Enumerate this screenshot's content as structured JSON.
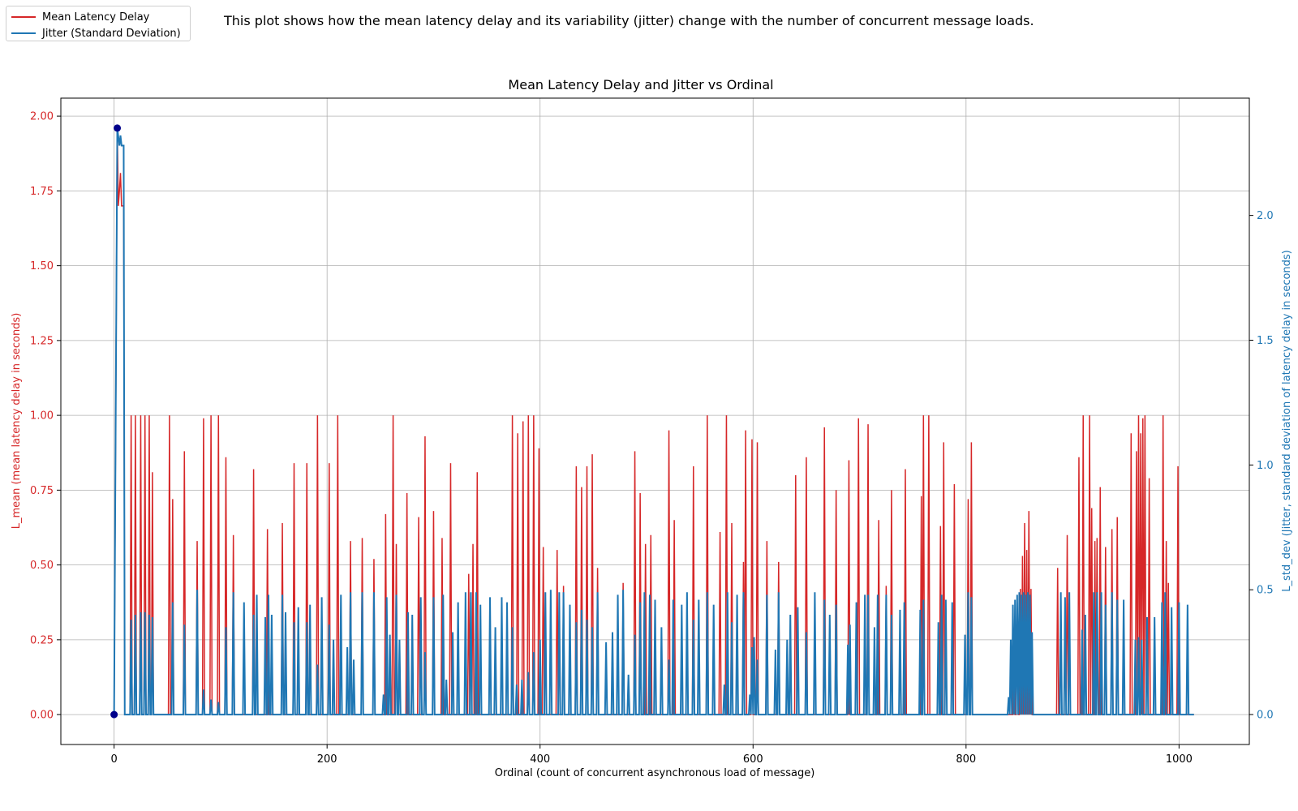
{
  "description": "This plot shows how the mean latency delay and its variability (jitter) change with the number of concurrent message loads.",
  "colors": {
    "mean": "#d62728",
    "jitter": "#1f77b4",
    "marker": "#00008b",
    "grid": "#b0b0b0"
  },
  "chart_data": {
    "type": "line",
    "title": "Mean Latency Delay and Jitter vs Ordinal",
    "xlabel": "Ordinal (count of concurrent asynchronous load of message)",
    "ylabel_left": "L_mean (mean latency delay in seconds)",
    "ylabel_right": "L_std_dev (Jitter, standard deviation of latency delay in seconds)",
    "xlim": [
      -50,
      1066
    ],
    "ylim_left": [
      -0.1,
      2.06
    ],
    "ylim_right": [
      -0.12,
      2.47
    ],
    "x_ticks": [
      "0",
      "200",
      "400",
      "600",
      "800",
      "1000"
    ],
    "y_left_ticks": [
      "0.00",
      "0.25",
      "0.50",
      "0.75",
      "1.00",
      "1.25",
      "1.50",
      "1.75",
      "2.00"
    ],
    "y_right_ticks": [
      "0.0",
      "0.5",
      "1.0",
      "1.5",
      "2.0"
    ],
    "grid": true,
    "legend": [
      "Mean Latency Delay",
      "Jitter (Standard Deviation)"
    ],
    "legend_placement": "top-left",
    "series": [
      {
        "name": "Mean Latency Delay",
        "axis": "left",
        "start": [
          [
            0,
            0
          ],
          [
            3,
            1.96
          ],
          [
            4,
            1.7
          ],
          [
            5,
            1.75
          ],
          [
            6,
            1.81
          ],
          [
            7,
            1.7
          ],
          [
            9,
            1.7
          ],
          [
            10,
            0
          ]
        ],
        "end": 1014,
        "spikes": [
          [
            16,
            1.0
          ],
          [
            20,
            1.0
          ],
          [
            25,
            1.0
          ],
          [
            29,
            1.0
          ],
          [
            33,
            1.0
          ],
          [
            36,
            0.81
          ],
          [
            52,
            1.0
          ],
          [
            55,
            0.72
          ],
          [
            66,
            0.88
          ],
          [
            78,
            0.58
          ],
          [
            84,
            0.99
          ],
          [
            91,
            1.0
          ],
          [
            98,
            1.0
          ],
          [
            105,
            0.86
          ],
          [
            112,
            0.6
          ],
          [
            131,
            0.82
          ],
          [
            144,
            0.62
          ],
          [
            158,
            0.64
          ],
          [
            169,
            0.84
          ],
          [
            181,
            0.84
          ],
          [
            191,
            1.0
          ],
          [
            202,
            0.84
          ],
          [
            210,
            1.0
          ],
          [
            222,
            0.58
          ],
          [
            233,
            0.59
          ],
          [
            244,
            0.52
          ],
          [
            255,
            0.67
          ],
          [
            262,
            1.0
          ],
          [
            265,
            0.57
          ],
          [
            275,
            0.74
          ],
          [
            286,
            0.66
          ],
          [
            292,
            0.93
          ],
          [
            300,
            0.68
          ],
          [
            308,
            0.59
          ],
          [
            316,
            0.84
          ],
          [
            333,
            0.47
          ],
          [
            337,
            0.57
          ],
          [
            341,
            0.81
          ],
          [
            374,
            1.0
          ],
          [
            379,
            0.94
          ],
          [
            384,
            0.98
          ],
          [
            389,
            1.0
          ],
          [
            394,
            1.0
          ],
          [
            399,
            0.89
          ],
          [
            403,
            0.56
          ],
          [
            416,
            0.55
          ],
          [
            422,
            0.43
          ],
          [
            434,
            0.83
          ],
          [
            439,
            0.76
          ],
          [
            444,
            0.83
          ],
          [
            449,
            0.87
          ],
          [
            454,
            0.49
          ],
          [
            478,
            0.44
          ],
          [
            489,
            0.88
          ],
          [
            494,
            0.74
          ],
          [
            499,
            0.57
          ],
          [
            504,
            0.6
          ],
          [
            521,
            0.95
          ],
          [
            526,
            0.65
          ],
          [
            544,
            0.83
          ],
          [
            557,
            1.0
          ],
          [
            569,
            0.61
          ],
          [
            575,
            1.0
          ],
          [
            580,
            0.64
          ],
          [
            591,
            0.51
          ],
          [
            593,
            0.95
          ],
          [
            599,
            0.92
          ],
          [
            604,
            0.91
          ],
          [
            613,
            0.58
          ],
          [
            624,
            0.51
          ],
          [
            640,
            0.8
          ],
          [
            650,
            0.86
          ],
          [
            667,
            0.96
          ],
          [
            678,
            0.75
          ],
          [
            690,
            0.85
          ],
          [
            699,
            0.99
          ],
          [
            708,
            0.97
          ],
          [
            718,
            0.65
          ],
          [
            725,
            0.43
          ],
          [
            730,
            0.75
          ],
          [
            743,
            0.82
          ],
          [
            758,
            0.73
          ],
          [
            760,
            1.0
          ],
          [
            765,
            1.0
          ],
          [
            776,
            0.63
          ],
          [
            779,
            0.91
          ],
          [
            789,
            0.77
          ],
          [
            802,
            0.72
          ],
          [
            805,
            0.91
          ],
          [
            845,
            0.27
          ],
          [
            848,
            0.36
          ],
          [
            851,
            0.42
          ],
          [
            853,
            0.53
          ],
          [
            855,
            0.64
          ],
          [
            857,
            0.55
          ],
          [
            859,
            0.68
          ],
          [
            861,
            0.42
          ],
          [
            886,
            0.49
          ],
          [
            895,
            0.6
          ],
          [
            906,
            0.86
          ],
          [
            910,
            1.0
          ],
          [
            916,
            1.0
          ],
          [
            918,
            0.69
          ],
          [
            921,
            0.58
          ],
          [
            923,
            0.59
          ],
          [
            926,
            0.76
          ],
          [
            931,
            0.56
          ],
          [
            937,
            0.62
          ],
          [
            942,
            0.66
          ],
          [
            955,
            0.94
          ],
          [
            960,
            0.88
          ],
          [
            962,
            1.0
          ],
          [
            964,
            0.94
          ],
          [
            966,
            0.99
          ],
          [
            968,
            1.0
          ],
          [
            972,
            0.79
          ],
          [
            985,
            1.0
          ],
          [
            988,
            0.58
          ],
          [
            990,
            0.44
          ],
          [
            999,
            0.83
          ]
        ]
      },
      {
        "name": "Jitter (Standard Deviation)",
        "axis": "right",
        "start": [
          [
            0,
            0
          ],
          [
            3,
            2.35
          ],
          [
            5,
            2.28
          ],
          [
            6,
            2.32
          ],
          [
            7,
            2.28
          ],
          [
            9,
            2.28
          ],
          [
            10,
            0
          ]
        ],
        "end": 1014,
        "spikes": [
          [
            16,
            0.38
          ],
          [
            20,
            0.4
          ],
          [
            25,
            0.41
          ],
          [
            29,
            0.41
          ],
          [
            33,
            0.4
          ],
          [
            36,
            0.39
          ],
          [
            55,
            0.45
          ],
          [
            66,
            0.36
          ],
          [
            78,
            0.5
          ],
          [
            84,
            0.1
          ],
          [
            91,
            0.06
          ],
          [
            98,
            0.05
          ],
          [
            105,
            0.35
          ],
          [
            112,
            0.49
          ],
          [
            122,
            0.45
          ],
          [
            131,
            0.4
          ],
          [
            134,
            0.48
          ],
          [
            142,
            0.39
          ],
          [
            145,
            0.48
          ],
          [
            148,
            0.4
          ],
          [
            158,
            0.48
          ],
          [
            161,
            0.41
          ],
          [
            169,
            0.37
          ],
          [
            173,
            0.43
          ],
          [
            181,
            0.37
          ],
          [
            184,
            0.44
          ],
          [
            191,
            0.2
          ],
          [
            195,
            0.47
          ],
          [
            202,
            0.36
          ],
          [
            206,
            0.3
          ],
          [
            213,
            0.48
          ],
          [
            219,
            0.27
          ],
          [
            222,
            0.49
          ],
          [
            225,
            0.22
          ],
          [
            233,
            0.49
          ],
          [
            244,
            0.49
          ],
          [
            253,
            0.08
          ],
          [
            256,
            0.47
          ],
          [
            259,
            0.32
          ],
          [
            265,
            0.48
          ],
          [
            268,
            0.3
          ],
          [
            276,
            0.41
          ],
          [
            280,
            0.4
          ],
          [
            288,
            0.47
          ],
          [
            292,
            0.25
          ],
          [
            300,
            0.47
          ],
          [
            309,
            0.48
          ],
          [
            312,
            0.14
          ],
          [
            318,
            0.33
          ],
          [
            323,
            0.45
          ],
          [
            330,
            0.49
          ],
          [
            335,
            0.49
          ],
          [
            340,
            0.49
          ],
          [
            344,
            0.44
          ],
          [
            353,
            0.47
          ],
          [
            358,
            0.35
          ],
          [
            364,
            0.47
          ],
          [
            369,
            0.45
          ],
          [
            374,
            0.35
          ],
          [
            378,
            0.12
          ],
          [
            383,
            0.14
          ],
          [
            389,
            0.17
          ],
          [
            394,
            0.25
          ],
          [
            400,
            0.3
          ],
          [
            405,
            0.49
          ],
          [
            410,
            0.5
          ],
          [
            418,
            0.49
          ],
          [
            422,
            0.49
          ],
          [
            428,
            0.44
          ],
          [
            434,
            0.37
          ],
          [
            439,
            0.42
          ],
          [
            444,
            0.38
          ],
          [
            449,
            0.35
          ],
          [
            454,
            0.49
          ],
          [
            462,
            0.29
          ],
          [
            468,
            0.33
          ],
          [
            473,
            0.48
          ],
          [
            478,
            0.5
          ],
          [
            483,
            0.16
          ],
          [
            489,
            0.32
          ],
          [
            494,
            0.45
          ],
          [
            498,
            0.49
          ],
          [
            503,
            0.48
          ],
          [
            508,
            0.46
          ],
          [
            514,
            0.35
          ],
          [
            521,
            0.22
          ],
          [
            525,
            0.46
          ],
          [
            533,
            0.44
          ],
          [
            538,
            0.49
          ],
          [
            544,
            0.38
          ],
          [
            549,
            0.46
          ],
          [
            557,
            0.49
          ],
          [
            563,
            0.44
          ],
          [
            573,
            0.12
          ],
          [
            576,
            0.49
          ],
          [
            580,
            0.37
          ],
          [
            585,
            0.48
          ],
          [
            591,
            0.49
          ],
          [
            597,
            0.08
          ],
          [
            599,
            0.27
          ],
          [
            601,
            0.31
          ],
          [
            604,
            0.22
          ],
          [
            613,
            0.48
          ],
          [
            621,
            0.26
          ],
          [
            624,
            0.49
          ],
          [
            632,
            0.3
          ],
          [
            635,
            0.4
          ],
          [
            642,
            0.43
          ],
          [
            650,
            0.33
          ],
          [
            658,
            0.49
          ],
          [
            667,
            0.46
          ],
          [
            672,
            0.4
          ],
          [
            678,
            0.44
          ],
          [
            689,
            0.28
          ],
          [
            691,
            0.36
          ],
          [
            697,
            0.45
          ],
          [
            705,
            0.48
          ],
          [
            708,
            0.48
          ],
          [
            714,
            0.35
          ],
          [
            717,
            0.48
          ],
          [
            725,
            0.48
          ],
          [
            730,
            0.4
          ],
          [
            738,
            0.42
          ],
          [
            742,
            0.45
          ],
          [
            757,
            0.42
          ],
          [
            760,
            0.46
          ],
          [
            774,
            0.37
          ],
          [
            777,
            0.48
          ],
          [
            781,
            0.46
          ],
          [
            787,
            0.45
          ],
          [
            799,
            0.32
          ],
          [
            802,
            0.49
          ],
          [
            805,
            0.47
          ],
          [
            840,
            0.07
          ],
          [
            842,
            0.3
          ],
          [
            844,
            0.44
          ],
          [
            846,
            0.46
          ],
          [
            848,
            0.48
          ],
          [
            850,
            0.49
          ],
          [
            852,
            0.48
          ],
          [
            854,
            0.49
          ],
          [
            856,
            0.48
          ],
          [
            858,
            0.49
          ],
          [
            860,
            0.48
          ],
          [
            862,
            0.33
          ],
          [
            889,
            0.49
          ],
          [
            893,
            0.47
          ],
          [
            897,
            0.49
          ],
          [
            909,
            0.34
          ],
          [
            912,
            0.4
          ],
          [
            920,
            0.49
          ],
          [
            923,
            0.49
          ],
          [
            927,
            0.49
          ],
          [
            931,
            0.44
          ],
          [
            937,
            0.49
          ],
          [
            942,
            0.46
          ],
          [
            948,
            0.46
          ],
          [
            959,
            0.3
          ],
          [
            962,
            0.31
          ],
          [
            965,
            0.3
          ],
          [
            970,
            0.39
          ],
          [
            977,
            0.39
          ],
          [
            984,
            0.45
          ],
          [
            987,
            0.49
          ],
          [
            993,
            0.43
          ],
          [
            1000,
            0.45
          ],
          [
            1008,
            0.44
          ]
        ]
      }
    ],
    "markers": [
      {
        "series": "left",
        "x": 0,
        "y": 0
      },
      {
        "series": "left",
        "x": 3,
        "y": 1.96
      }
    ]
  }
}
